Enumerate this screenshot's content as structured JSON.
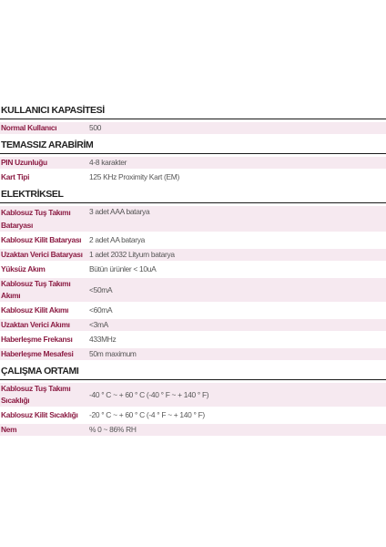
{
  "sections": [
    {
      "title": "KULLANICI KAPASİTESİ",
      "rows": [
        {
          "label": "Normal Kullanıcı",
          "value": "500"
        }
      ]
    },
    {
      "title": "TEMASSIZ ARABİRİM",
      "rows": [
        {
          "label": "PIN Uzunluğu",
          "value": "4-8 karakter"
        },
        {
          "label": "Kart Tipi",
          "value": "125 KHz Proximity Kart (EM)"
        }
      ]
    },
    {
      "title": "ELEKTRİKSEL",
      "rows": [
        {
          "label_line1": "Kablosuz Tuş Takımı",
          "label_line2": "Bataryası",
          "value": "3 adet AAA batarya"
        },
        {
          "label": "Kablosuz Kilit Bataryası",
          "value": "2 adet AA batarya"
        },
        {
          "label": "Uzaktan Verici Bataryası",
          "value": "1 adet 2032 Lityum batarya"
        },
        {
          "label": "Yüksüz Akım",
          "value": "Bütün ürünler < 10uA"
        },
        {
          "label": "Kablosuz Tuş Takımı Akımı",
          "value": "<50mA"
        },
        {
          "label": "Kablosuz Kilit Akımı",
          "value": "<60mA"
        },
        {
          "label": "Uzaktan Verici Akımı",
          "value": "<3mA"
        },
        {
          "label": "Haberleşme Frekansı",
          "value": "433MHz"
        },
        {
          "label": "Haberleşme Mesafesi",
          "value": "50m maximum"
        }
      ]
    },
    {
      "title": "ÇALIŞMA ORTAMI",
      "rows": [
        {
          "label": "Kablosuz Tuş Takımı Sıcaklığı",
          "value": "-40 ° C ~ + 60 ° C (-40 ° F ~ + 140 ° F)"
        },
        {
          "label": "Kablosuz Kilit Sıcaklığı",
          "value": "-20 ° C ~ + 60 ° C (-4 ° F ~ + 140 ° F)"
        },
        {
          "label": "Nem",
          "value": "% 0 ~ 86% RH"
        }
      ]
    }
  ]
}
